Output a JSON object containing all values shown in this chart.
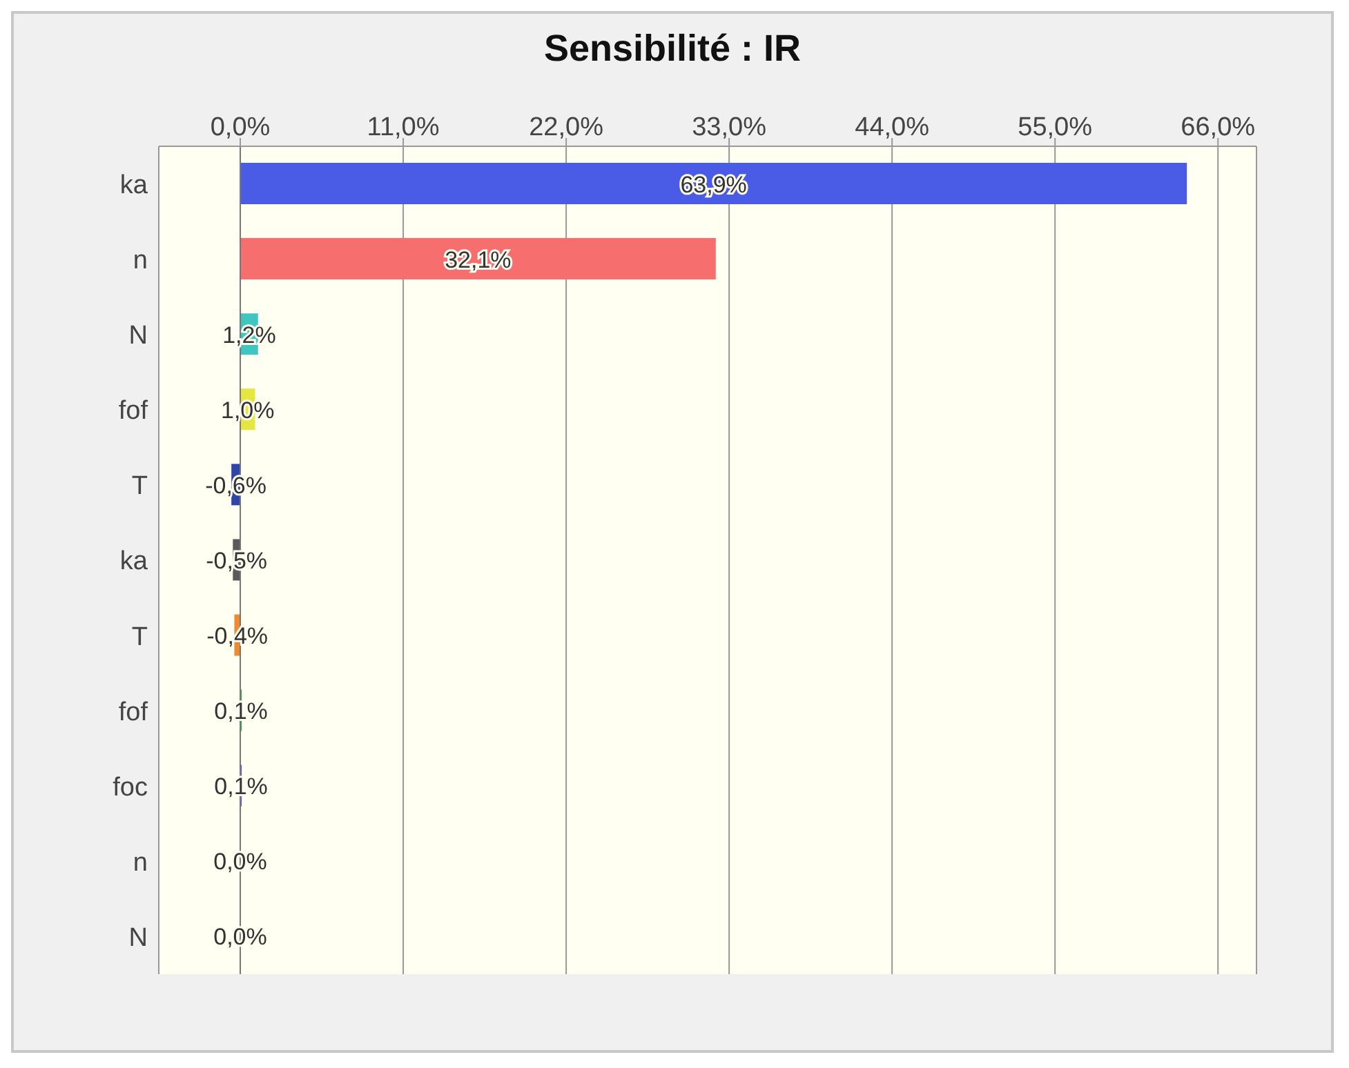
{
  "chart_data": {
    "type": "bar",
    "orientation": "horizontal",
    "title": "Sensibilité : IR",
    "categories": [
      "ka",
      "n",
      "N",
      "fof",
      "T",
      "ka",
      "T",
      "fof",
      "foc",
      "n",
      "N"
    ],
    "values": [
      63.9,
      32.1,
      1.2,
      1.0,
      -0.6,
      -0.5,
      -0.4,
      0.1,
      0.1,
      0.0,
      0.0
    ],
    "value_labels": [
      "63,9%",
      "32,1%",
      "1,2%",
      "1,0%",
      "-0,6%",
      "-0,5%",
      "-0,4%",
      "0,1%",
      "0,1%",
      "0,0%",
      "0,0%"
    ],
    "colors": [
      "#4a5ce6",
      "#f76e6e",
      "#3fc6bf",
      "#e6e640",
      "#2f46a8",
      "#5a5a5a",
      "#f08a30",
      "#30b050",
      "#6a60c0",
      "#a080a0",
      "#8090a0"
    ],
    "xlim": [
      -5.5,
      68.6
    ],
    "xticks": [
      {
        "value": 0,
        "label": "0,0%"
      },
      {
        "value": 11,
        "label": "11,0%"
      },
      {
        "value": 22,
        "label": "22,0%"
      },
      {
        "value": 33,
        "label": "33,0%"
      },
      {
        "value": 44,
        "label": "44,0%"
      },
      {
        "value": 55,
        "label": "55,0%"
      },
      {
        "value": 66,
        "label": "66,0%"
      }
    ],
    "grid": "x",
    "legend": false
  }
}
